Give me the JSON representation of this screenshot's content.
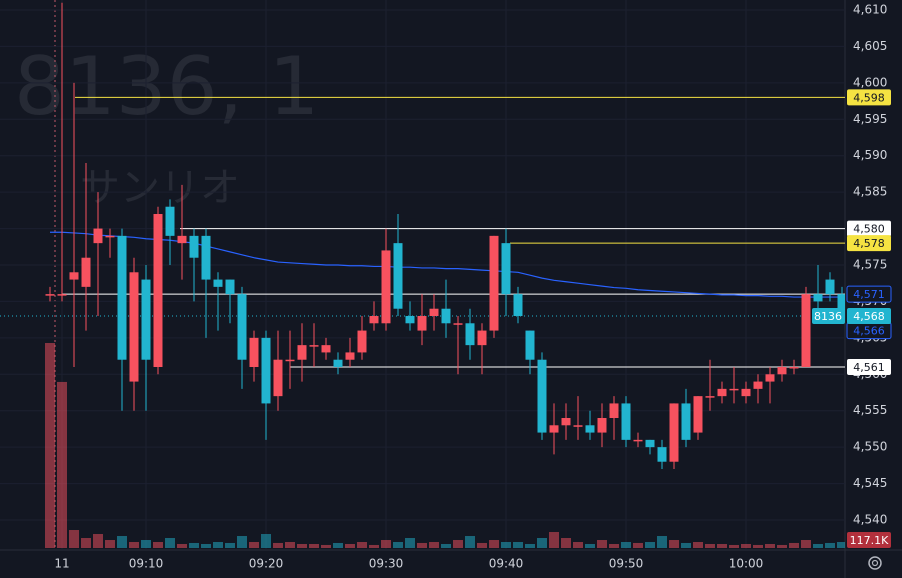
{
  "chart_data": {
    "type": "candlestick",
    "symbol_watermark": "8136, 1",
    "name_watermark": "サンリオ",
    "categories": [
      null,
      "11",
      null,
      null,
      null,
      null,
      null,
      null,
      "09:10",
      null,
      null,
      null,
      null,
      null,
      null,
      null,
      null,
      null,
      "09:20",
      null,
      null,
      null,
      null,
      null,
      null,
      null,
      null,
      null,
      "09:30",
      null,
      null,
      null,
      null,
      null,
      null,
      null,
      null,
      null,
      "09:40",
      null,
      null,
      null,
      null,
      null,
      null,
      null,
      null,
      null,
      "09:50",
      null,
      null,
      null,
      null,
      null,
      null,
      null,
      null,
      null,
      "10:00",
      null,
      null,
      null,
      null,
      null,
      null,
      null,
      null
    ],
    "open": [
      4571,
      4571,
      4573,
      4572,
      4578,
      4579,
      4579,
      4559,
      4573,
      4561,
      4583,
      4578,
      4579,
      4579,
      4573,
      4573,
      4571,
      4561,
      4565,
      4557,
      4562,
      4562,
      4564,
      4563,
      4562,
      4562,
      4563,
      4567,
      4567,
      4578,
      4568,
      4566,
      4568,
      4569,
      4567,
      4567,
      4564,
      4566,
      4578,
      4571,
      4566,
      4562,
      4552,
      4553,
      4553,
      4553,
      4552,
      4554,
      4556,
      4551,
      4551,
      4550,
      4548,
      4556,
      4552,
      4557,
      4557,
      4558,
      4557,
      4558,
      4559,
      4560,
      4561,
      4561,
      4571,
      4573,
      4571
    ],
    "high": [
      4572,
      4611,
      4600,
      4589,
      4585,
      4580,
      4580,
      4576,
      4575,
      4583,
      4584,
      4586,
      4580,
      4580,
      4574,
      4573,
      4572,
      4566,
      4566,
      4566,
      4566,
      4567,
      4567,
      4565,
      4563,
      4565,
      4568,
      4570,
      4580,
      4582,
      4570,
      4571,
      4571,
      4573,
      4568,
      4569,
      4567,
      4579,
      4580,
      4572,
      4566,
      4563,
      4556,
      4556,
      4557,
      4555,
      4556,
      4557,
      4557,
      4552,
      4551,
      4551,
      4556,
      4558,
      4557,
      4562,
      4559,
      4561,
      4559,
      4560,
      4561,
      4562,
      4562,
      4572,
      4575,
      4574,
      4572
    ],
    "low": [
      4570,
      4570,
      4561,
      4566,
      4568,
      4576,
      4555,
      4555,
      4555,
      4560,
      4575,
      4573,
      4570,
      4565,
      4566,
      4567,
      4558,
      4559,
      4551,
      4555,
      4558,
      4559,
      4561,
      4562,
      4560,
      4561,
      4562,
      4566,
      4566,
      4568,
      4566,
      4564,
      4566,
      4565,
      4560,
      4562,
      4560,
      4565,
      4568,
      4567,
      4560,
      4551,
      4549,
      4551,
      4551,
      4551,
      4550,
      4551,
      4550,
      4550,
      4549,
      4547,
      4547,
      4550,
      4551,
      4555,
      4556,
      4556,
      4556,
      4556,
      4556,
      4559,
      4560,
      4561,
      4569,
      4570,
      4567
    ],
    "close": [
      4571,
      4571,
      4574,
      4576,
      4580,
      4579,
      4562,
      4574,
      4562,
      4582,
      4579,
      4579,
      4576,
      4573,
      4572,
      4571,
      4562,
      4565,
      4556,
      4562,
      4562,
      4564,
      4564,
      4564,
      4561,
      4563,
      4566,
      4568,
      4577,
      4569,
      4567,
      4568,
      4569,
      4567,
      4567,
      4564,
      4566,
      4579,
      4571,
      4568,
      4562,
      4552,
      4553,
      4554,
      4553,
      4552,
      4554,
      4556,
      4551,
      4551,
      4550,
      4548,
      4556,
      4551,
      4557,
      4557,
      4558,
      4558,
      4558,
      4559,
      4560,
      4561,
      4561,
      4571,
      4570,
      4571,
      4568
    ],
    "volume": [
      4000000,
      3240000,
      351000,
      195000,
      273000,
      156000,
      234000,
      117000,
      156000,
      117000,
      195000,
      78000,
      98000,
      78000,
      117000,
      98000,
      234000,
      117000,
      273000,
      98000,
      117000,
      78000,
      78000,
      59000,
      98000,
      78000,
      117000,
      59000,
      156000,
      117000,
      195000,
      98000,
      117000,
      78000,
      156000,
      234000,
      98000,
      156000,
      117000,
      117000,
      78000,
      195000,
      312000,
      195000,
      117000,
      78000,
      156000,
      78000,
      117000,
      98000,
      117000,
      234000,
      156000,
      98000,
      117000,
      78000,
      78000,
      59000,
      78000,
      59000,
      78000,
      59000,
      98000,
      156000,
      78000,
      98000,
      117100
    ],
    "volume_label": "117.1K",
    "up_color": "#f7525f",
    "down_color": "#22b5d0",
    "vwap": {
      "color": "#2962ff",
      "values": [
        4579.5,
        4579.5,
        4579.4,
        4579.3,
        4579.1,
        4579.0,
        4578.9,
        4578.8,
        4578.6,
        4578.5,
        4578.4,
        4578.2,
        4578.0,
        4577.6,
        4577.2,
        4576.8,
        4576.4,
        4576.0,
        4575.7,
        4575.4,
        4575.3,
        4575.2,
        4575.1,
        4575.0,
        4575.0,
        4574.9,
        4574.9,
        4574.8,
        4574.8,
        4574.7,
        4574.7,
        4574.6,
        4574.6,
        4574.5,
        4574.5,
        4574.4,
        4574.3,
        4574.2,
        4574.1,
        4574.0,
        4573.6,
        4573.2,
        4572.9,
        4572.7,
        4572.5,
        4572.3,
        4572.1,
        4571.9,
        4571.8,
        4571.6,
        4571.5,
        4571.4,
        4571.3,
        4571.2,
        4571.1,
        4571.0,
        4570.9,
        4570.9,
        4570.8,
        4570.8,
        4570.7,
        4570.7,
        4570.6,
        4570.6,
        4570.6,
        4570.6,
        4570.6
      ]
    },
    "price_lines": [
      {
        "value": 4598,
        "label": "4,598",
        "color": "#f5e342"
      },
      {
        "value": 4580,
        "label": "4,580",
        "color": "#ffffff"
      },
      {
        "value": 4578,
        "label": "4,578",
        "color": "#f5e342"
      },
      {
        "value": 4571,
        "label": "4,571",
        "color": "#ffffff"
      },
      {
        "value": 4561,
        "label": "4,561",
        "color": "#ffffff"
      }
    ],
    "axis_badges": [
      {
        "value": 4571,
        "label": "4,571",
        "color": "#2962ff"
      },
      {
        "value": 4566,
        "label": "4,566",
        "color": "#2962ff"
      }
    ],
    "last_price": {
      "value": 4568,
      "label": "4,568",
      "tag": "8136",
      "color": "#22b5d0"
    },
    "ylim": [
      4540,
      4610
    ],
    "yticks": [
      {
        "value": 4540,
        "label": "4,540"
      },
      {
        "value": 4545,
        "label": "4,545"
      },
      {
        "value": 4550,
        "label": "4,550"
      },
      {
        "value": 4555,
        "label": "4,555"
      },
      {
        "value": 4560,
        "label": "4,560"
      },
      {
        "value": 4565,
        "label": "4,565"
      },
      {
        "value": 4570,
        "label": "4,570"
      },
      {
        "value": 4575,
        "label": "4,575"
      },
      {
        "value": 4580,
        "label": "4,580"
      },
      {
        "value": 4585,
        "label": "4,585"
      },
      {
        "value": 4590,
        "label": "4,590"
      },
      {
        "value": 4595,
        "label": "4,595"
      },
      {
        "value": 4600,
        "label": "4,600"
      },
      {
        "value": 4605,
        "label": "4,605"
      },
      {
        "value": 4610,
        "label": "4,610"
      }
    ],
    "grid": true
  }
}
